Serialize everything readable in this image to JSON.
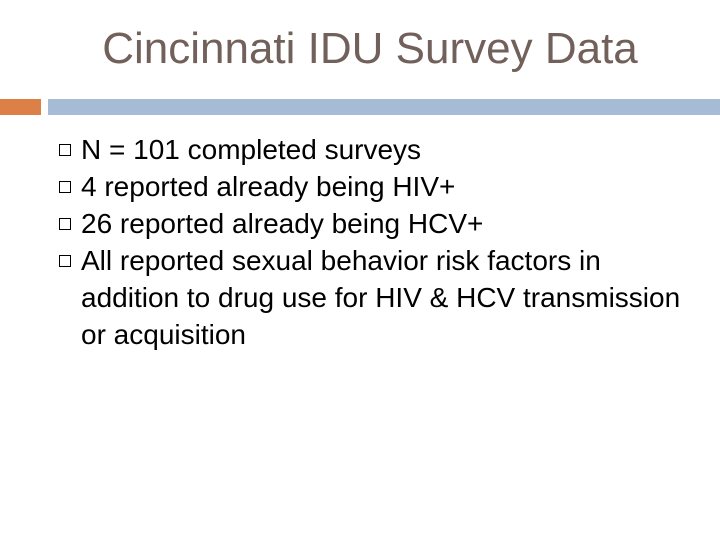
{
  "slide": {
    "title": "Cincinnati IDU Survey Data",
    "accent_color": "#dd8047",
    "rule_color": "#a5bbd6",
    "title_color": "#72605a",
    "bullet_icon": "square-bullet-icon",
    "bullets": [
      {
        "text": "N = 101 completed surveys"
      },
      {
        "text": "4 reported already being HIV+"
      },
      {
        "text": "26 reported already being HCV+"
      },
      {
        "text": "All reported sexual behavior risk factors in addition to drug use for HIV & HCV transmission or acquisition"
      }
    ]
  }
}
